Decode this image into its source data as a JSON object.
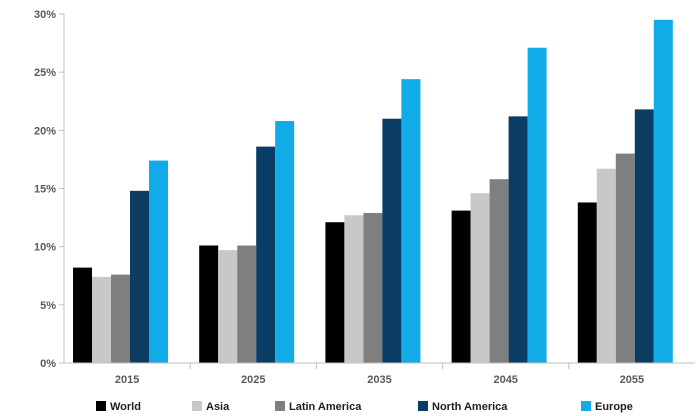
{
  "chart_data": {
    "type": "bar",
    "title": "",
    "xlabel": "",
    "ylabel": "",
    "categories": [
      "2015",
      "2025",
      "2035",
      "2045",
      "2055"
    ],
    "ylim": [
      0,
      30
    ],
    "yticks": [
      0,
      5,
      10,
      15,
      20,
      25,
      30
    ],
    "ytick_labels": [
      "0%",
      "5%",
      "10%",
      "15%",
      "20%",
      "25%",
      "30%"
    ],
    "grid": false,
    "legend_position": "bottom",
    "series": [
      {
        "name": "World",
        "color": "#000000",
        "values": [
          8.2,
          10.1,
          12.1,
          13.1,
          13.8
        ]
      },
      {
        "name": "Asia",
        "color": "#c8c8c8",
        "values": [
          7.4,
          9.7,
          12.7,
          14.6,
          16.7
        ]
      },
      {
        "name": "Latin America",
        "color": "#7f7f7f",
        "values": [
          7.6,
          10.1,
          12.9,
          15.8,
          18.0
        ]
      },
      {
        "name": "North America",
        "color": "#0b3c64",
        "values": [
          14.8,
          18.6,
          21.0,
          21.2,
          21.8
        ]
      },
      {
        "name": "Europe",
        "color": "#11abe8",
        "values": [
          17.4,
          20.8,
          24.4,
          27.1,
          29.5
        ]
      }
    ]
  }
}
